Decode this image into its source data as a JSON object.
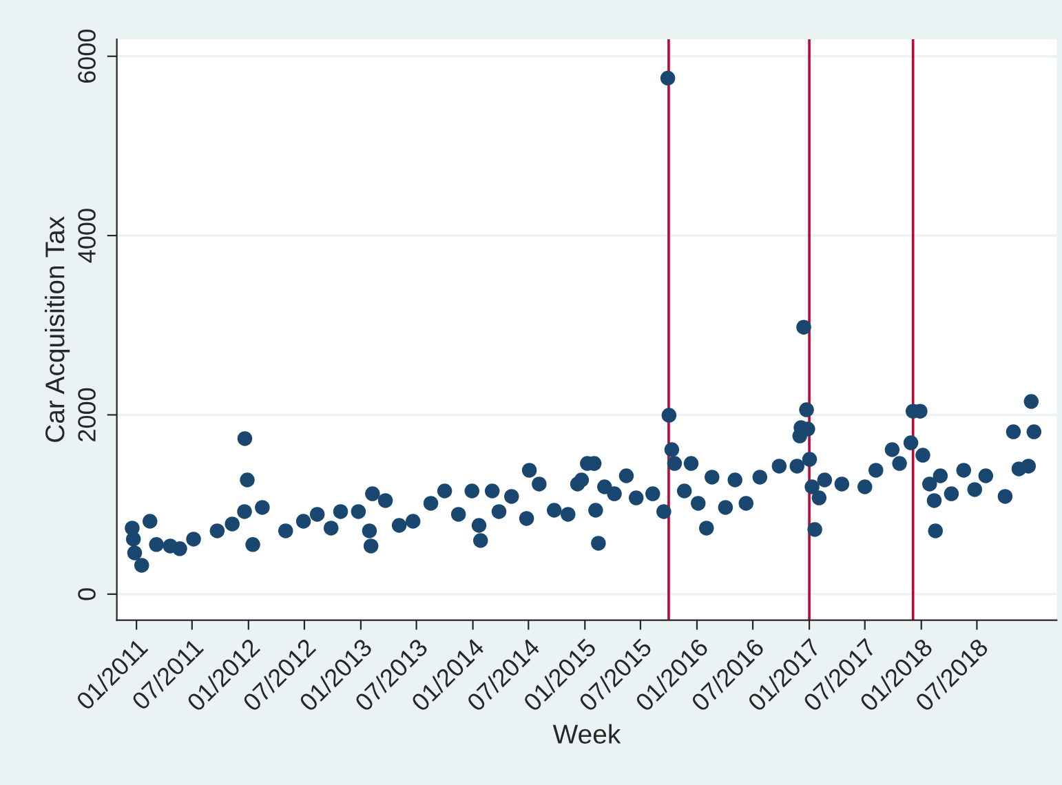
{
  "chart_data": {
    "type": "scatter",
    "xlabel": "Week",
    "ylabel": "Car Acquisition Tax",
    "x": [
      "2010-12-18",
      "2010-12-22",
      "2010-12-26",
      "2011-01-18",
      "2011-02-14",
      "2011-03-07",
      "2011-04-21",
      "2011-05-22",
      "2011-07-06",
      "2011-09-21",
      "2011-11-09",
      "2011-12-19",
      "2011-12-20",
      "2011-12-28",
      "2012-01-15",
      "2012-02-15",
      "2012-05-01",
      "2012-06-28",
      "2012-08-12",
      "2012-09-26",
      "2012-10-27",
      "2012-12-24",
      "2013-01-29",
      "2013-02-03",
      "2013-02-08",
      "2013-03-22",
      "2013-05-06",
      "2013-06-20",
      "2013-08-17",
      "2013-10-01",
      "2013-11-15",
      "2013-12-29",
      "2014-01-21",
      "2014-01-26",
      "2014-03-05",
      "2014-03-27",
      "2014-05-07",
      "2014-06-25",
      "2014-07-04",
      "2014-08-05",
      "2014-09-23",
      "2014-11-07",
      "2014-12-08",
      "2014-12-21",
      "2015-01-09",
      "2015-01-31",
      "2015-02-05",
      "2015-02-14",
      "2015-03-06",
      "2015-04-07",
      "2015-05-16",
      "2015-06-17",
      "2015-08-10",
      "2015-09-15",
      "2015-09-28",
      "2015-10-02",
      "2015-10-11",
      "2015-10-20",
      "2015-11-21",
      "2015-12-13",
      "2016-01-05",
      "2016-02-01",
      "2016-02-19",
      "2016-04-03",
      "2016-05-04",
      "2016-06-09",
      "2016-07-24",
      "2016-09-25",
      "2016-11-22",
      "2016-12-01",
      "2016-12-05",
      "2016-12-14",
      "2016-12-23",
      "2016-12-27",
      "2017-01-02",
      "2017-01-10",
      "2017-01-19",
      "2017-02-02",
      "2017-02-20",
      "2017-04-17",
      "2017-07-01",
      "2017-08-06",
      "2017-09-28",
      "2017-10-22",
      "2017-11-28",
      "2017-12-05",
      "2017-12-28",
      "2018-01-06",
      "2018-01-28",
      "2018-02-12",
      "2018-02-16",
      "2018-03-04",
      "2018-04-09",
      "2018-05-19",
      "2018-06-24",
      "2018-07-30",
      "2018-10-01",
      "2018-10-28",
      "2018-11-15",
      "2018-12-16",
      "2018-12-25",
      "2019-01-03"
    ],
    "series": [
      {
        "color": "#1a476f",
        "values": [
          737,
          614,
          460,
          322,
          813,
          553,
          537,
          507,
          614,
          706,
          783,
          921,
          1735,
          1274,
          553,
          967,
          706,
          813,
          890,
          737,
          921,
          921,
          706,
          537,
          1120,
          1044,
          767,
          813,
          1013,
          1151,
          890,
          1151,
          767,
          598,
          1151,
          921,
          1090,
          844,
          1382,
          1228,
          936,
          890,
          1228,
          1274,
          1458,
          1458,
          936,
          568,
          1197,
          1120,
          1320,
          1074,
          1120,
          921,
          5756,
          1995,
          1612,
          1458,
          1151,
          1458,
          1013,
          737,
          1305,
          967,
          1274,
          1013,
          1305,
          1428,
          1428,
          1765,
          1857,
          2978,
          2057,
          1842,
          1504,
          1197,
          721,
          1074,
          1274,
          1228,
          1197,
          1382,
          1612,
          1458,
          1688,
          2041,
          2041,
          1550,
          1228,
          1044,
          706,
          1320,
          1120,
          1382,
          1167,
          1320,
          1090,
          1811,
          1397,
          1428,
          2149,
          1811
        ]
      }
    ],
    "marker": "circle",
    "xlim": [
      "2010-10-29",
      "2019-03-18"
    ],
    "xticks": [
      {
        "value": "2011-01-01",
        "label": "01/2011"
      },
      {
        "value": "2011-07-01",
        "label": "07/2011"
      },
      {
        "value": "2012-01-01",
        "label": "01/2012"
      },
      {
        "value": "2012-07-01",
        "label": "07/2012"
      },
      {
        "value": "2013-01-01",
        "label": "01/2013"
      },
      {
        "value": "2013-07-01",
        "label": "07/2013"
      },
      {
        "value": "2014-01-01",
        "label": "01/2014"
      },
      {
        "value": "2014-07-01",
        "label": "07/2014"
      },
      {
        "value": "2015-01-01",
        "label": "01/2015"
      },
      {
        "value": "2015-07-01",
        "label": "07/2015"
      },
      {
        "value": "2016-01-01",
        "label": "01/2016"
      },
      {
        "value": "2016-07-01",
        "label": "07/2016"
      },
      {
        "value": "2017-01-01",
        "label": "01/2017"
      },
      {
        "value": "2017-07-01",
        "label": "07/2017"
      },
      {
        "value": "2018-01-01",
        "label": "01/2018"
      },
      {
        "value": "2018-07-01",
        "label": "07/2018"
      }
    ],
    "ylim": [
      -290,
      6190
    ],
    "yticks": [
      0,
      2000,
      4000,
      6000
    ],
    "grid": "y",
    "ref_lines": [
      {
        "axis": "x",
        "value": "2015-10-01",
        "color": "#c10534"
      },
      {
        "axis": "x",
        "value": "2017-01-01",
        "color": "#c10534"
      },
      {
        "axis": "x",
        "value": "2017-12-05",
        "color": "#c10534"
      }
    ]
  }
}
